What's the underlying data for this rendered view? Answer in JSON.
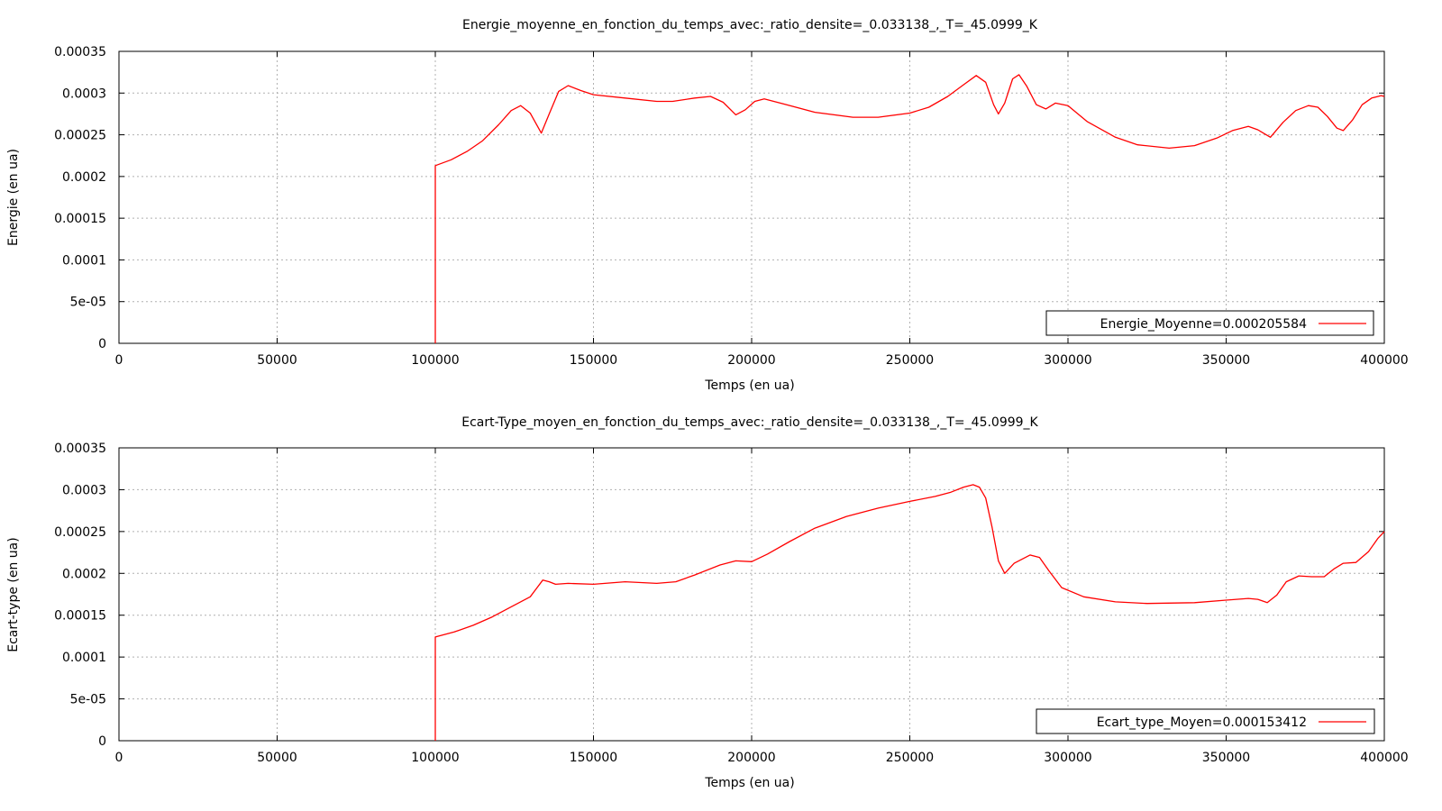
{
  "chart_data": [
    {
      "type": "line",
      "title": "Energie_moyenne_en_fonction_du_temps_avec:_ratio_densite=_0.033138_,_T=_45.0999_K",
      "xlabel": "Temps (en ua)",
      "ylabel": "Energie (en ua)",
      "xlim": [
        0,
        400000
      ],
      "ylim": [
        0,
        0.00035
      ],
      "x_ticks": [
        "0",
        "50000",
        "100000",
        "150000",
        "200000",
        "250000",
        "300000",
        "350000",
        "400000"
      ],
      "y_ticks": [
        "0",
        "5e-05",
        "0.0001",
        "0.00015",
        "0.0002",
        "0.00025",
        "0.0003",
        "0.00035"
      ],
      "grid": true,
      "legend_position": "bottom-right",
      "color": "#ff0000",
      "series": [
        {
          "name": "Energie_Moyenne=0.000205584",
          "x": [
            100000,
            100000,
            105000,
            110000,
            115000,
            120000,
            124000,
            127000,
            130000,
            133500,
            136000,
            139000,
            142000,
            146000,
            150000,
            160000,
            170000,
            175000,
            182000,
            187000,
            191000,
            195000,
            198000,
            201000,
            204000,
            210000,
            220000,
            232000,
            240000,
            250000,
            256000,
            262000,
            267000,
            271000,
            274000,
            276500,
            278000,
            280000,
            282500,
            284500,
            287000,
            290000,
            293000,
            296000,
            300000,
            306000,
            315000,
            322000,
            332000,
            340000,
            347000,
            352000,
            357000,
            360000,
            364000,
            368000,
            372000,
            376000,
            379000,
            382000,
            385000,
            387000,
            390000,
            393000,
            396000,
            399000,
            400000
          ],
          "y": [
            0,
            0.000213,
            0.00022,
            0.00023,
            0.000243,
            0.000262,
            0.000279,
            0.000285,
            0.000276,
            0.000252,
            0.000275,
            0.000302,
            0.000309,
            0.000303,
            0.000298,
            0.000294,
            0.00029,
            0.00029,
            0.000294,
            0.000296,
            0.000289,
            0.000274,
            0.00028,
            0.00029,
            0.000293,
            0.000287,
            0.000277,
            0.000271,
            0.000271,
            0.000276,
            0.000283,
            0.000296,
            0.00031,
            0.000321,
            0.000313,
            0.000286,
            0.000275,
            0.000288,
            0.000317,
            0.000322,
            0.000308,
            0.000286,
            0.000281,
            0.000288,
            0.000285,
            0.000266,
            0.000247,
            0.000238,
            0.000234,
            0.000237,
            0.000246,
            0.000255,
            0.00026,
            0.000256,
            0.000247,
            0.000265,
            0.000279,
            0.000285,
            0.000283,
            0.000272,
            0.000258,
            0.000255,
            0.000268,
            0.000286,
            0.000294,
            0.000297,
            0.000296
          ]
        }
      ]
    },
    {
      "type": "line",
      "title": "Ecart-Type_moyen_en_fonction_du_temps_avec:_ratio_densite=_0.033138_,_T=_45.0999_K",
      "xlabel": "Temps (en ua)",
      "ylabel": "Ecart-type (en ua)",
      "xlim": [
        0,
        400000
      ],
      "ylim": [
        0,
        0.00035
      ],
      "x_ticks": [
        "0",
        "50000",
        "100000",
        "150000",
        "200000",
        "250000",
        "300000",
        "350000",
        "400000"
      ],
      "y_ticks": [
        "0",
        "5e-05",
        "0.0001",
        "0.00015",
        "0.0002",
        "0.00025",
        "0.0003",
        "0.00035"
      ],
      "grid": true,
      "legend_position": "bottom-right",
      "color": "#ff0000",
      "series": [
        {
          "name": "Ecart_type_Moyen=0.000153412",
          "x": [
            100000,
            100000,
            106000,
            112000,
            118000,
            124000,
            130000,
            132000,
            134000,
            136000,
            138000,
            142000,
            150000,
            160000,
            170000,
            176000,
            182000,
            190000,
            195000,
            200000,
            205000,
            212000,
            220000,
            230000,
            240000,
            250000,
            258000,
            263000,
            267000,
            270000,
            272000,
            274000,
            276000,
            278000,
            280000,
            283000,
            288000,
            291000,
            294000,
            298000,
            305000,
            315000,
            325000,
            340000,
            350000,
            357000,
            360000,
            363000,
            366000,
            369000,
            373000,
            377000,
            381000,
            384000,
            387000,
            391000,
            395000,
            398000,
            400000
          ],
          "y": [
            0,
            0.000124,
            0.00013,
            0.000138,
            0.000148,
            0.00016,
            0.000172,
            0.000182,
            0.000192,
            0.00019,
            0.000187,
            0.000188,
            0.000187,
            0.00019,
            0.000188,
            0.00019,
            0.000198,
            0.00021,
            0.000215,
            0.000214,
            0.000223,
            0.000238,
            0.000254,
            0.000268,
            0.000278,
            0.000286,
            0.000292,
            0.000297,
            0.000303,
            0.000306,
            0.000303,
            0.00029,
            0.000255,
            0.000215,
            0.0002,
            0.000212,
            0.000222,
            0.000219,
            0.000203,
            0.000183,
            0.000172,
            0.000166,
            0.000164,
            0.000165,
            0.000168,
            0.00017,
            0.000169,
            0.000165,
            0.000174,
            0.00019,
            0.000197,
            0.000196,
            0.000196,
            0.000205,
            0.000212,
            0.000213,
            0.000226,
            0.000242,
            0.00025
          ]
        }
      ]
    }
  ]
}
